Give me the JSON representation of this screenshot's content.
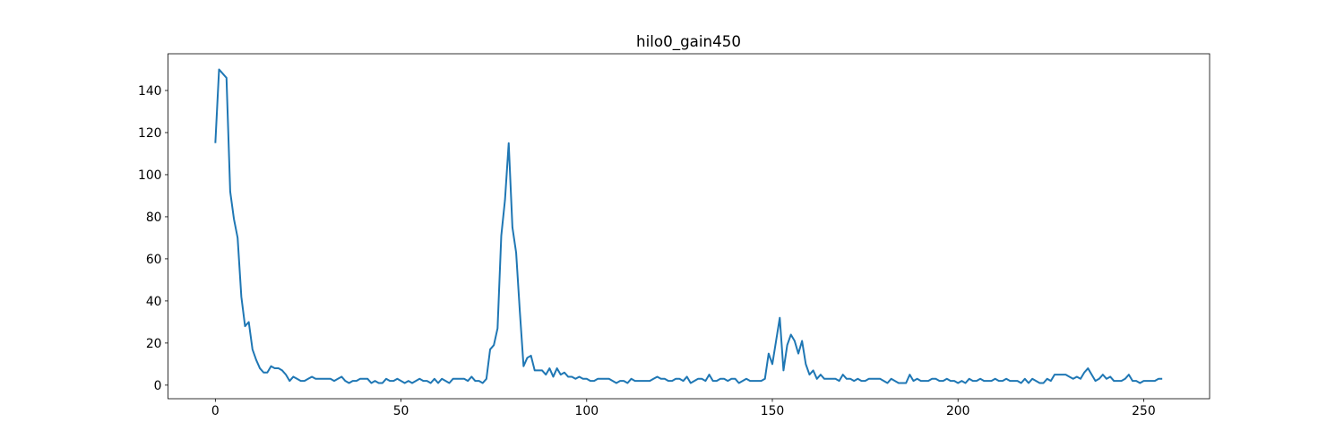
{
  "chart_data": {
    "type": "line",
    "title": "hilo0_gain450",
    "x": [
      0,
      1,
      2,
      3,
      4,
      5,
      6,
      7,
      8,
      9,
      10,
      11,
      12,
      13,
      14,
      15,
      16,
      17,
      18,
      19,
      20,
      21,
      22,
      23,
      24,
      25,
      26,
      27,
      28,
      29,
      30,
      31,
      32,
      33,
      34,
      35,
      36,
      37,
      38,
      39,
      40,
      41,
      42,
      43,
      44,
      45,
      46,
      47,
      48,
      49,
      50,
      51,
      52,
      53,
      54,
      55,
      56,
      57,
      58,
      59,
      60,
      61,
      62,
      63,
      64,
      65,
      66,
      67,
      68,
      69,
      70,
      71,
      72,
      73,
      74,
      75,
      76,
      77,
      78,
      79,
      80,
      81,
      82,
      83,
      84,
      85,
      86,
      87,
      88,
      89,
      90,
      91,
      92,
      93,
      94,
      95,
      96,
      97,
      98,
      99,
      100,
      101,
      102,
      103,
      104,
      105,
      106,
      107,
      108,
      109,
      110,
      111,
      112,
      113,
      114,
      115,
      116,
      117,
      118,
      119,
      120,
      121,
      122,
      123,
      124,
      125,
      126,
      127,
      128,
      129,
      130,
      131,
      132,
      133,
      134,
      135,
      136,
      137,
      138,
      139,
      140,
      141,
      142,
      143,
      144,
      145,
      146,
      147,
      148,
      149,
      150,
      151,
      152,
      153,
      154,
      155,
      156,
      157,
      158,
      159,
      160,
      161,
      162,
      163,
      164,
      165,
      166,
      167,
      168,
      169,
      170,
      171,
      172,
      173,
      174,
      175,
      176,
      177,
      178,
      179,
      180,
      181,
      182,
      183,
      184,
      185,
      186,
      187,
      188,
      189,
      190,
      191,
      192,
      193,
      194,
      195,
      196,
      197,
      198,
      199,
      200,
      201,
      202,
      203,
      204,
      205,
      206,
      207,
      208,
      209,
      210,
      211,
      212,
      213,
      214,
      215,
      216,
      217,
      218,
      219,
      220,
      221,
      222,
      223,
      224,
      225,
      226,
      227,
      228,
      229,
      230,
      231,
      232,
      233,
      234,
      235,
      236,
      237,
      238,
      239,
      240,
      241,
      242,
      243,
      244,
      245,
      246,
      247,
      248,
      249,
      250,
      251,
      252,
      253,
      254,
      255
    ],
    "series": [
      {
        "color": "#1f77b4",
        "values": [
          115,
          150,
          148,
          146,
          92,
          79,
          70,
          42,
          28,
          30,
          17,
          12,
          8,
          6,
          6,
          9,
          8,
          8,
          7,
          5,
          2,
          4,
          3,
          2,
          2,
          3,
          4,
          3,
          3,
          3,
          3,
          3,
          2,
          3,
          4,
          2,
          1,
          2,
          2,
          3,
          3,
          3,
          1,
          2,
          1,
          1,
          3,
          2,
          2,
          3,
          2,
          1,
          2,
          1,
          2,
          3,
          2,
          2,
          1,
          3,
          1,
          3,
          2,
          1,
          3,
          3,
          3,
          3,
          2,
          4,
          2,
          2,
          1,
          3,
          17,
          19,
          27,
          71,
          88,
          115,
          75,
          63,
          35,
          9,
          13,
          14,
          7,
          7,
          7,
          5,
          8,
          4,
          8,
          5,
          6,
          4,
          4,
          3,
          4,
          3,
          3,
          2,
          2,
          3,
          3,
          3,
          3,
          2,
          1,
          2,
          2,
          1,
          3,
          2,
          2,
          2,
          2,
          2,
          3,
          4,
          3,
          3,
          2,
          2,
          3,
          3,
          2,
          4,
          1,
          2,
          3,
          3,
          2,
          5,
          2,
          2,
          3,
          3,
          2,
          3,
          3,
          1,
          2,
          3,
          2,
          2,
          2,
          2,
          3,
          15,
          10,
          21,
          32,
          7,
          19,
          24,
          21,
          15,
          21,
          10,
          5,
          7,
          3,
          5,
          3,
          3,
          3,
          3,
          2,
          5,
          3,
          3,
          2,
          3,
          2,
          2,
          3,
          3,
          3,
          3,
          2,
          1,
          3,
          2,
          1,
          1,
          1,
          5,
          2,
          3,
          2,
          2,
          2,
          3,
          3,
          2,
          2,
          3,
          2,
          2,
          1,
          2,
          1,
          3,
          2,
          2,
          3,
          2,
          2,
          2,
          3,
          2,
          2,
          3,
          2,
          2,
          2,
          1,
          3,
          1,
          3,
          2,
          1,
          1,
          3,
          2,
          5,
          5,
          5,
          5,
          4,
          3,
          4,
          3,
          6,
          8,
          5,
          2,
          3,
          5,
          3,
          4,
          2,
          2,
          2,
          3,
          5,
          2,
          2,
          1,
          2,
          2,
          2,
          2,
          3,
          3
        ]
      }
    ],
    "xlim": [
      -12.75,
      267.75
    ],
    "xticks": [
      0,
      50,
      100,
      150,
      200,
      250
    ],
    "ylim": [
      -6.45,
      157.45
    ],
    "yticks": [
      0,
      20,
      40,
      60,
      80,
      100,
      120,
      140
    ]
  }
}
